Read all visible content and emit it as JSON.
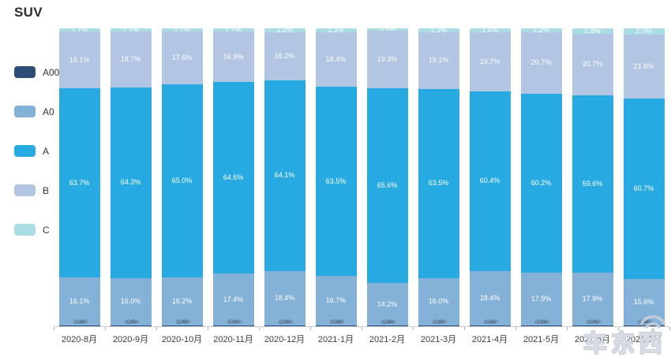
{
  "title": "SUV",
  "watermark": {
    "text": "车东西",
    "icon": "wifi-arcs-icon"
  },
  "chart_data": {
    "type": "bar",
    "stacked": true,
    "orientation": "vertical",
    "unit": "%",
    "ylim": [
      0,
      100
    ],
    "grid": false,
    "legend_position": "left",
    "title": "SUV",
    "categories": [
      "2020-8月",
      "2020-9月",
      "2020-10月",
      "2020-11月",
      "2020-12月",
      "2021-1月",
      "2021-2月",
      "2021-3月",
      "2021-4月",
      "2021-5月",
      "2021-6月",
      "2021-7月"
    ],
    "series": [
      {
        "name": "A00",
        "color": "#2d4d74",
        "values": [
          0.0,
          0.0,
          0.0,
          0.0,
          0.0,
          0.0,
          0.0,
          0.0,
          0.0,
          0.0,
          0.0,
          0.0
        ]
      },
      {
        "name": "A0",
        "color": "#84b1d8",
        "values": [
          16.1,
          16.0,
          16.2,
          17.4,
          18.4,
          16.7,
          14.2,
          16.0,
          18.4,
          17.9,
          17.9,
          15.6
        ]
      },
      {
        "name": "A",
        "color": "#27aae1",
        "values": [
          63.7,
          64.3,
          65.0,
          64.6,
          64.1,
          63.5,
          65.6,
          63.5,
          60.4,
          60.2,
          59.6,
          60.7
        ]
      },
      {
        "name": "B",
        "color": "#b2c5e2",
        "values": [
          19.1,
          18.7,
          17.6,
          16.9,
          16.2,
          18.4,
          19.3,
          19.1,
          19.7,
          20.7,
          20.7,
          21.6
        ]
      },
      {
        "name": "C",
        "color": "#a9dce3",
        "values": [
          1.1,
          1.1,
          1.1,
          1.1,
          1.2,
          1.3,
          0.9,
          1.3,
          1.4,
          1.2,
          1.8,
          2.0
        ]
      }
    ]
  }
}
